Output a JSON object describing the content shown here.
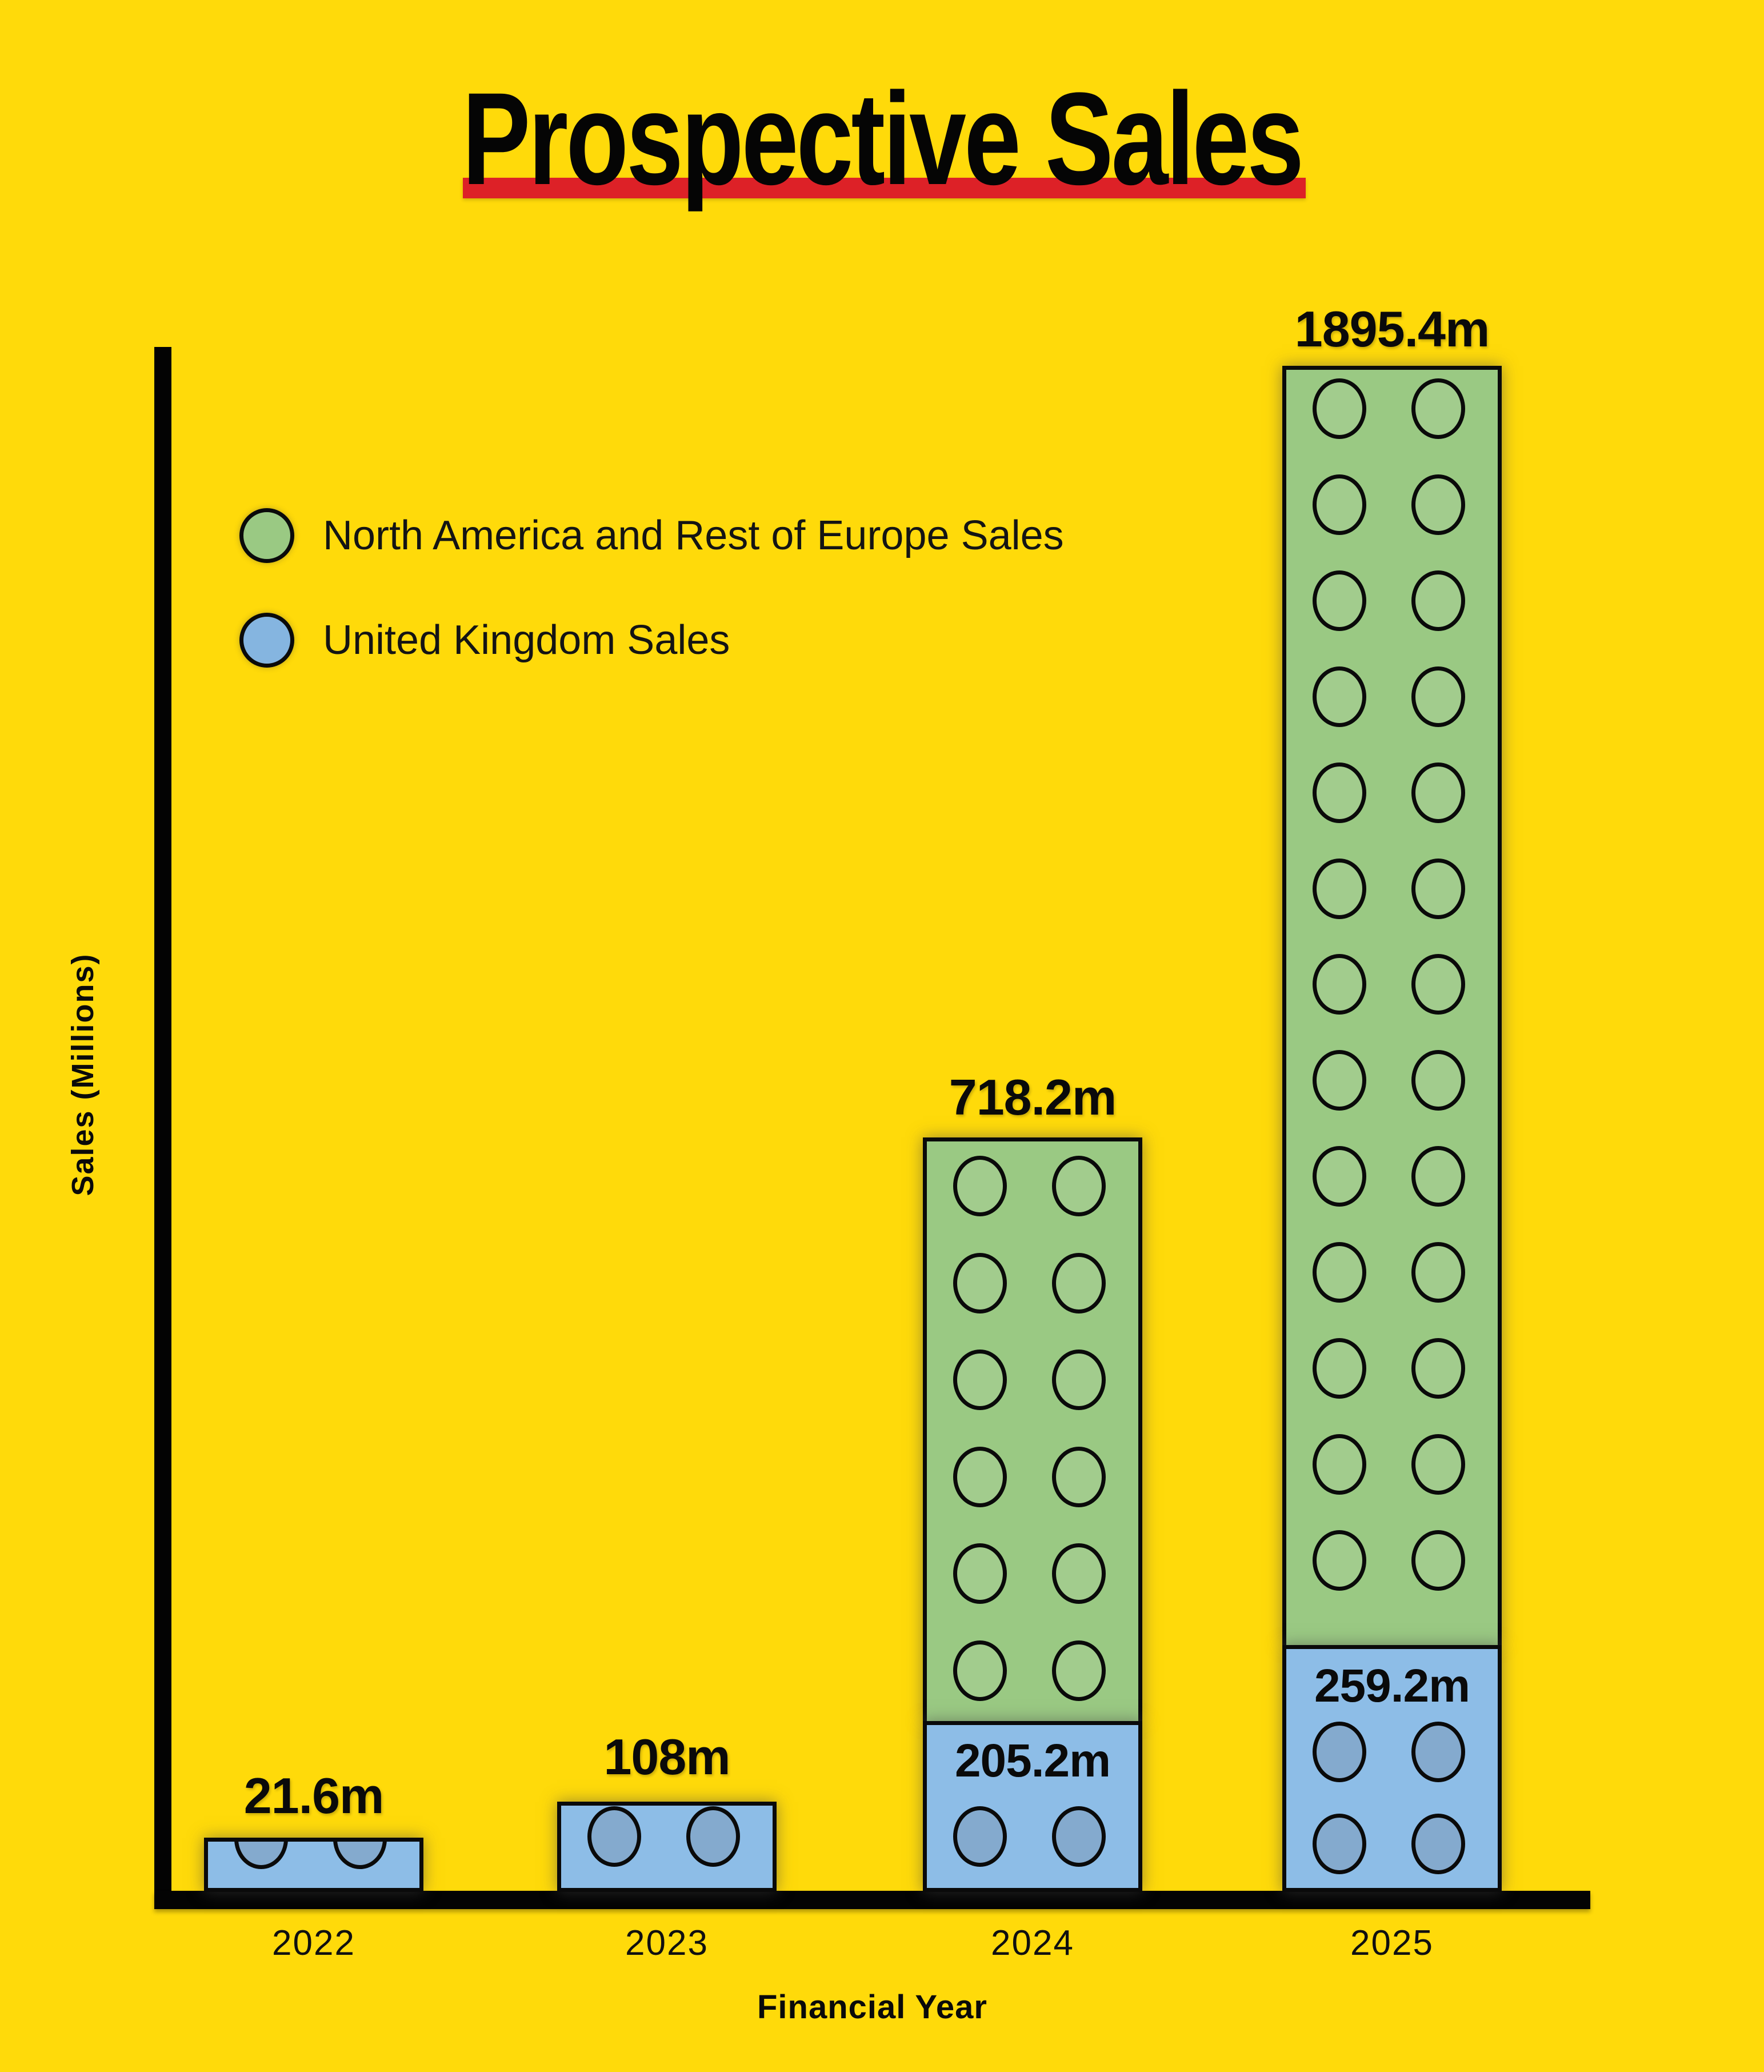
{
  "title": "Prospective Sales",
  "legend": {
    "items": [
      {
        "label": "North America and Rest of Europe Sales",
        "color": "#9AC983"
      },
      {
        "label": "United Kingdom Sales",
        "color": "#85B5E0"
      }
    ]
  },
  "axes": {
    "y_label": "Sales (Millions)",
    "x_label": "Financial Year"
  },
  "colors": {
    "background": "#FFDA0A",
    "title_underline": "#DD2127",
    "na_europe_brick": "#9AC983",
    "na_europe_stud": "#A2CC8D",
    "uk_brick": "#8DBDE7",
    "uk_stud": "#84AACE",
    "axis": "#030303"
  },
  "chart_data": {
    "type": "bar",
    "stacked": true,
    "style": "lego-brick-bars",
    "title": "Prospective Sales",
    "xlabel": "Financial Year",
    "ylabel": "Sales (Millions)",
    "grid": false,
    "legend_position": "upper-left",
    "categories": [
      "2022",
      "2023",
      "2024",
      "2025"
    ],
    "series": [
      {
        "name": "United Kingdom Sales",
        "values": [
          21.6,
          108,
          205.2,
          259.2
        ]
      },
      {
        "name": "North America and Rest of Europe Sales",
        "values": [
          0,
          0,
          513.0,
          1636.2
        ]
      }
    ],
    "totals": [
      21.6,
      108,
      718.2,
      1895.4
    ],
    "total_labels": [
      "21.6m",
      "108m",
      "718.2m",
      "1895.4m"
    ],
    "uk_inside_labels": [
      "",
      "",
      "205.2m",
      "259.2m"
    ],
    "note": "Bar heights are schematic (not linearly proportional to values)"
  }
}
